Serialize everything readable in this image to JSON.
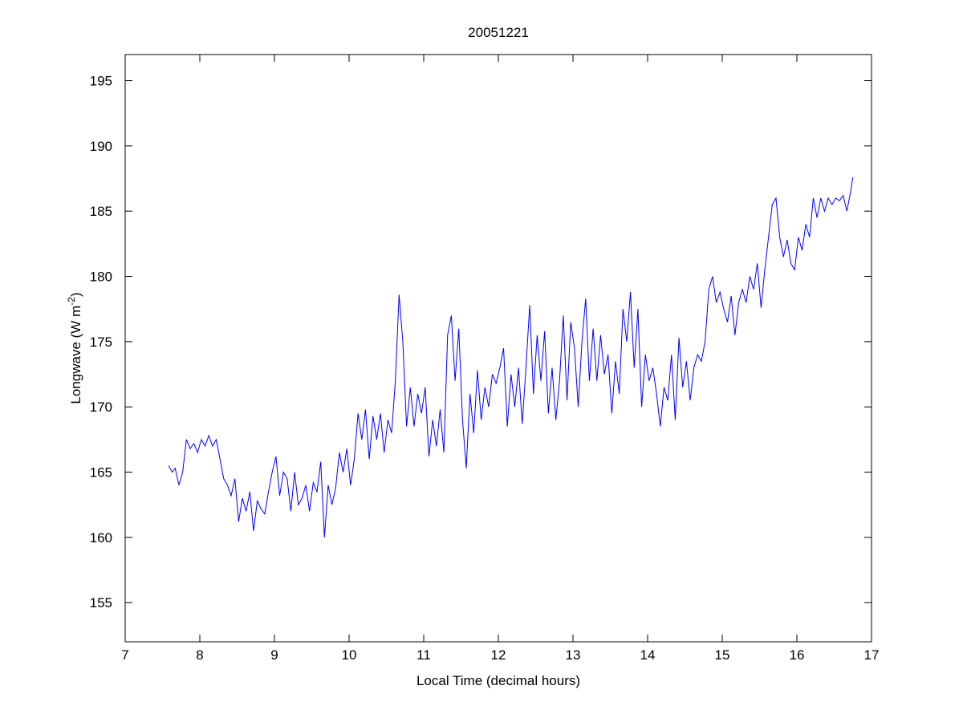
{
  "chart_data": {
    "type": "line",
    "title": "20051221",
    "xlabel": "Local Time (decimal hours)",
    "ylabel": {
      "base": "Longwave (W m",
      "superscript": "-2",
      "close": ")"
    },
    "xlim": [
      7,
      17
    ],
    "xticks": [
      7,
      8,
      9,
      10,
      11,
      12,
      13,
      14,
      15,
      16,
      17
    ],
    "ylim": [
      152,
      197
    ],
    "yticks": [
      155,
      160,
      165,
      170,
      175,
      180,
      185,
      190,
      195
    ],
    "grid": false,
    "x": [
      7.58,
      7.63,
      7.67,
      7.72,
      7.77,
      7.82,
      7.87,
      7.92,
      7.97,
      8.02,
      8.07,
      8.12,
      8.17,
      8.22,
      8.27,
      8.32,
      8.37,
      8.42,
      8.47,
      8.52,
      8.57,
      8.62,
      8.67,
      8.72,
      8.77,
      8.82,
      8.87,
      8.92,
      8.97,
      9.02,
      9.07,
      9.12,
      9.17,
      9.22,
      9.27,
      9.32,
      9.37,
      9.42,
      9.47,
      9.52,
      9.57,
      9.62,
      9.67,
      9.72,
      9.77,
      9.82,
      9.87,
      9.92,
      9.97,
      10.02,
      10.07,
      10.12,
      10.17,
      10.22,
      10.27,
      10.32,
      10.37,
      10.42,
      10.47,
      10.52,
      10.57,
      10.62,
      10.67,
      10.72,
      10.77,
      10.82,
      10.87,
      10.92,
      10.97,
      11.02,
      11.07,
      11.12,
      11.17,
      11.22,
      11.27,
      11.32,
      11.37,
      11.42,
      11.47,
      11.52,
      11.57,
      11.62,
      11.67,
      11.72,
      11.77,
      11.82,
      11.87,
      11.92,
      11.97,
      12.02,
      12.07,
      12.12,
      12.17,
      12.22,
      12.27,
      12.32,
      12.37,
      12.42,
      12.47,
      12.52,
      12.57,
      12.62,
      12.67,
      12.72,
      12.77,
      12.82,
      12.87,
      12.92,
      12.97,
      13.02,
      13.07,
      13.12,
      13.17,
      13.22,
      13.27,
      13.32,
      13.37,
      13.42,
      13.47,
      13.52,
      13.57,
      13.62,
      13.67,
      13.72,
      13.77,
      13.82,
      13.87,
      13.92,
      13.97,
      14.02,
      14.07,
      14.12,
      14.17,
      14.22,
      14.27,
      14.32,
      14.37,
      14.42,
      14.47,
      14.52,
      14.57,
      14.62,
      14.67,
      14.72,
      14.77,
      14.82,
      14.87,
      14.92,
      14.97,
      15.02,
      15.07,
      15.12,
      15.17,
      15.22,
      15.27,
      15.32,
      15.37,
      15.42,
      15.47,
      15.52,
      15.57,
      15.62,
      15.67,
      15.72,
      15.77,
      15.82,
      15.87,
      15.92,
      15.97,
      16.02,
      16.07,
      16.12,
      16.17,
      16.22,
      16.27,
      16.32,
      16.37,
      16.42,
      16.47,
      16.52,
      16.57,
      16.62,
      16.67,
      16.72,
      16.75
    ],
    "series": [
      {
        "color": "#0000ff",
        "values": [
          165.5,
          165.0,
          165.3,
          164.0,
          165.0,
          167.5,
          166.8,
          167.2,
          166.5,
          167.5,
          167.0,
          167.8,
          167.0,
          167.5,
          166.0,
          164.5,
          164.0,
          163.2,
          164.5,
          161.2,
          163.0,
          162.0,
          163.5,
          160.5,
          162.8,
          162.2,
          161.8,
          163.5,
          165.0,
          166.2,
          163.2,
          165.0,
          164.5,
          162.0,
          165.0,
          162.5,
          163.0,
          164.0,
          162.0,
          164.2,
          163.5,
          165.8,
          160.0,
          164.0,
          162.5,
          163.8,
          166.5,
          165.0,
          166.8,
          164.0,
          166.0,
          169.5,
          167.5,
          169.8,
          166.0,
          169.3,
          167.5,
          169.5,
          166.5,
          169.0,
          168.0,
          172.0,
          178.6,
          175.0,
          168.5,
          171.5,
          168.5,
          171.0,
          169.5,
          171.5,
          166.2,
          169.0,
          167.0,
          169.8,
          166.5,
          175.5,
          177.0,
          172.0,
          176.0,
          169.0,
          165.3,
          171.0,
          168.0,
          172.8,
          169.0,
          171.5,
          170.0,
          172.5,
          171.8,
          173.0,
          174.5,
          168.5,
          172.5,
          170.0,
          173.0,
          168.7,
          173.0,
          177.8,
          171.0,
          175.5,
          172.0,
          175.8,
          169.5,
          173.0,
          169.0,
          172.0,
          177.0,
          170.5,
          176.5,
          174.5,
          170.0,
          175.0,
          178.3,
          172.0,
          176.0,
          172.0,
          175.5,
          172.5,
          174.0,
          169.5,
          173.5,
          171.0,
          177.5,
          175.0,
          178.8,
          173.0,
          177.5,
          170.0,
          174.0,
          172.0,
          173.0,
          171.0,
          168.5,
          171.5,
          170.5,
          174.0,
          169.0,
          175.3,
          171.5,
          173.5,
          170.5,
          173.0,
          174.0,
          173.5,
          175.0,
          179.0,
          180.0,
          178.0,
          178.8,
          177.5,
          176.5,
          178.5,
          175.5,
          178.0,
          179.0,
          178.0,
          180.0,
          179.0,
          181.0,
          177.6,
          180.5,
          183.0,
          185.5,
          186.0,
          183.0,
          181.5,
          182.8,
          181.0,
          180.5,
          183.0,
          182.0,
          184.0,
          183.0,
          186.0,
          184.5,
          186.0,
          185.0,
          186.0,
          185.5,
          186.0,
          185.8,
          186.2,
          185.0,
          186.5,
          187.6
        ]
      }
    ]
  }
}
